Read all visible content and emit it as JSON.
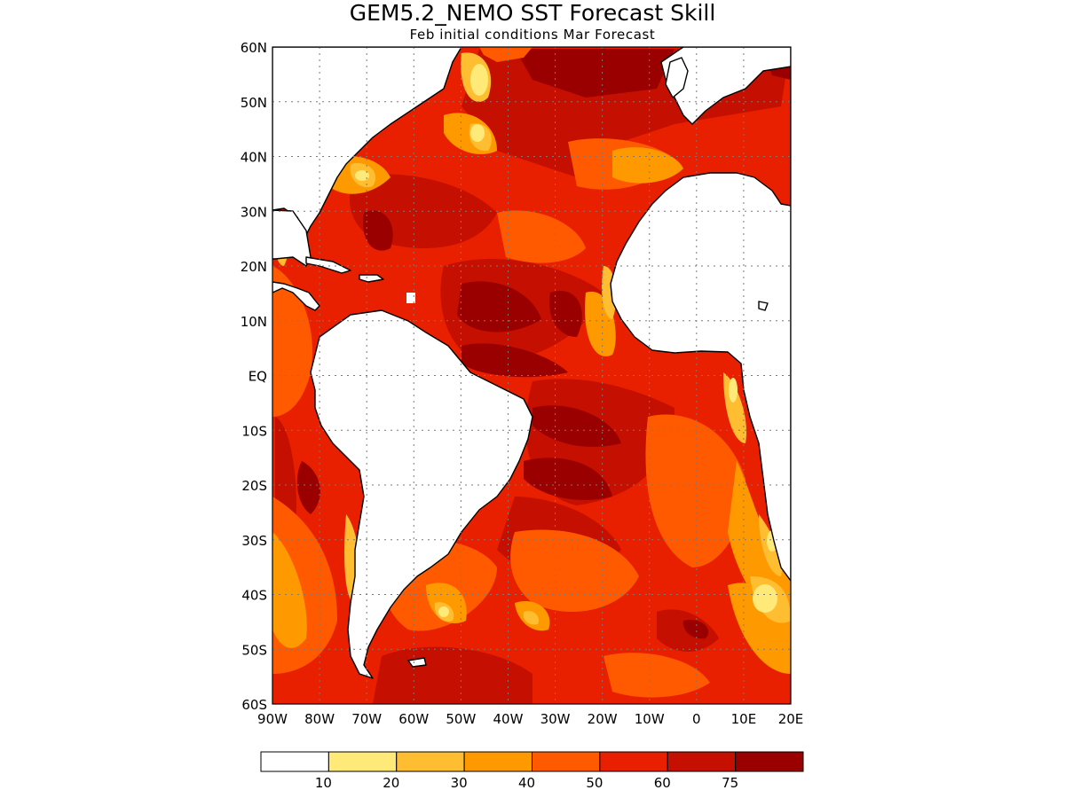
{
  "chart_data": {
    "type": "heatmap",
    "title": "GEM5.2_NEMO SST Forecast Skill",
    "subtitle": "Feb initial conditions  Mar Forecast",
    "x_ticks": [
      "90W",
      "80W",
      "70W",
      "60W",
      "50W",
      "40W",
      "30W",
      "20W",
      "10W",
      "0",
      "10E",
      "20E"
    ],
    "y_ticks": [
      "60N",
      "50N",
      "40N",
      "30N",
      "20N",
      "10N",
      "EQ",
      "10S",
      "20S",
      "30S",
      "40S",
      "50S",
      "60S"
    ],
    "xlim": [
      -90,
      20
    ],
    "ylim": [
      -60,
      60
    ],
    "grid": true,
    "colorbar": {
      "boundaries": [
        "10",
        "20",
        "30",
        "40",
        "50",
        "60",
        "75"
      ],
      "colors": [
        "#ffffff",
        "#ffe978",
        "#ffbe32",
        "#ff9900",
        "#ff5a00",
        "#e82000",
        "#c50f00",
        "#9a0000"
      ]
    }
  }
}
